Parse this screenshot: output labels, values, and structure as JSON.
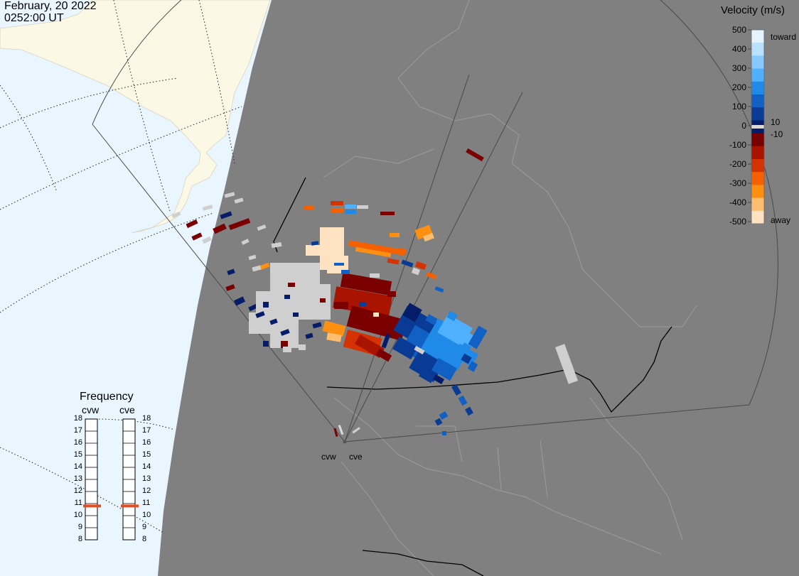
{
  "timestamp": {
    "date": "February, 20 2022",
    "time": "0252:00 UT"
  },
  "colorbar": {
    "title": "Velocity (m/s)",
    "ticks": [
      "500",
      "400",
      "300",
      "200",
      "100",
      "0",
      "-100",
      "-200",
      "-300",
      "-400",
      "-500"
    ],
    "toward_label": "toward",
    "away_label": "away",
    "pos_threshold": "10",
    "neg_threshold": "-10",
    "colors": [
      "#e3f3ff",
      "#b9e1ff",
      "#86c8ff",
      "#4fb0ff",
      "#1f8ae8",
      "#1161c4",
      "#0a3b94",
      "#051c68",
      "#7a0000",
      "#a81400",
      "#d43200",
      "#f56000",
      "#ff8f10",
      "#ffbd70",
      "#ffe2c2"
    ]
  },
  "frequency": {
    "title": "Frequency",
    "radars": [
      "cvw",
      "cve"
    ],
    "levels": [
      "18",
      "17",
      "16",
      "15",
      "14",
      "13",
      "12",
      "11",
      "10",
      "9",
      "8"
    ],
    "cvw_mhz": 10.8,
    "cve_mhz": 10.8,
    "marker_color": "#e84c1e"
  },
  "radar_sites": [
    "cvw",
    "cve"
  ],
  "map_colors": {
    "night": "#808080",
    "day_ocean": "#e9f6ff",
    "day_land": "#fbf8e6",
    "border": "#9c9c9c",
    "fov": "#4a4a4a"
  }
}
